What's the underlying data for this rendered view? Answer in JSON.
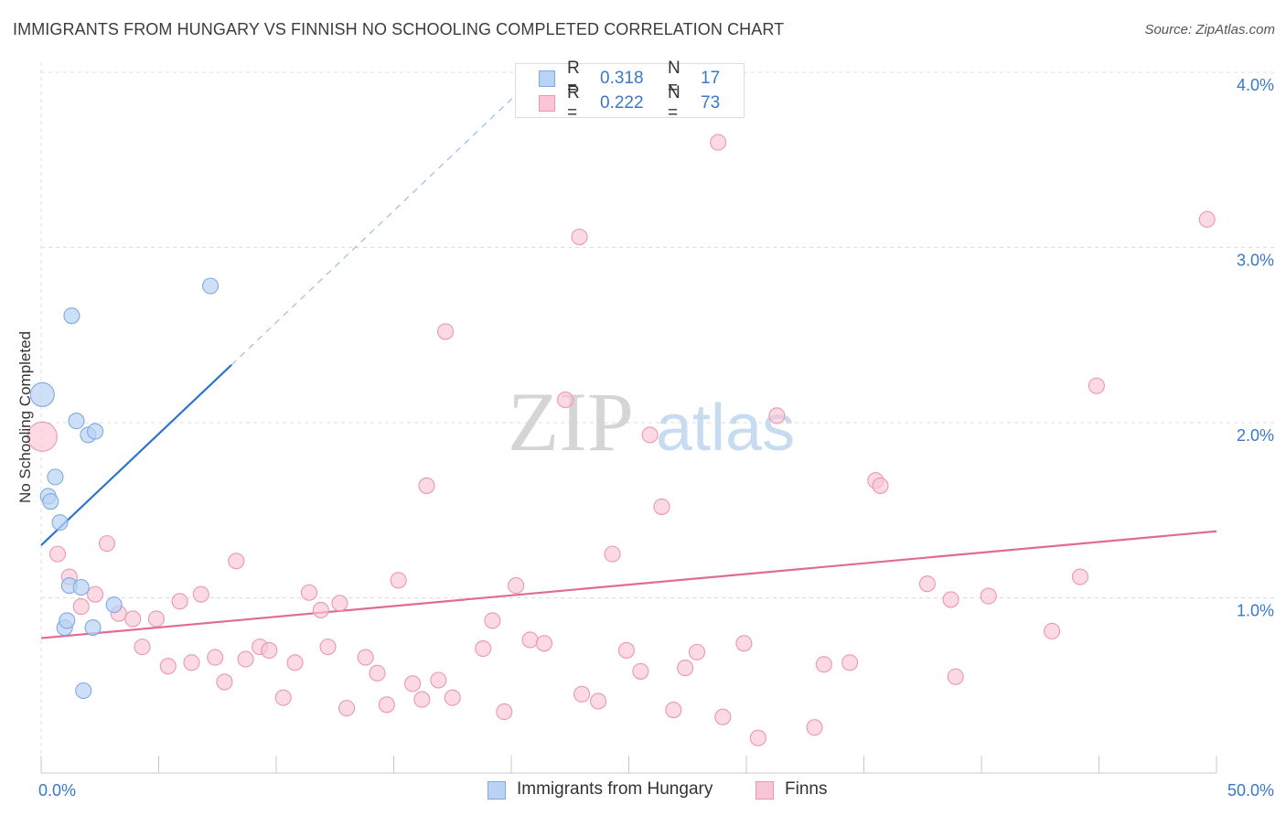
{
  "header": {
    "title": "IMMIGRANTS FROM HUNGARY VS FINNISH NO SCHOOLING COMPLETED CORRELATION CHART",
    "source": "Source: ZipAtlas.com"
  },
  "watermark": {
    "zip": "ZIP",
    "atlas": "atlas"
  },
  "legend_top": [
    {
      "r_label": "R =",
      "r_value": "0.318",
      "n_label": "N =",
      "n_value": "17"
    },
    {
      "r_label": "R =",
      "r_value": "0.222",
      "n_label": "N =",
      "n_value": "73"
    }
  ],
  "legend_bottom": [
    {
      "label": "Immigrants from Hungary"
    },
    {
      "label": "Finns"
    }
  ],
  "colors": {
    "hungary_fill": "#b9d3f5",
    "hungary_stroke": "#7ea9e1",
    "hungary_line": "#2e74cc",
    "finns_fill": "#f9c6d5",
    "finns_stroke": "#eb97b1",
    "finns_line": "#e06b93",
    "tick_text": "#3a78c9",
    "grid": "#dcdcdc"
  },
  "chart_data": {
    "type": "scatter",
    "title": "IMMIGRANTS FROM HUNGARY VS FINNISH NO SCHOOLING COMPLETED CORRELATION CHART",
    "xlabel": "",
    "ylabel": "No Schooling Completed",
    "xlim": [
      0,
      50
    ],
    "ylim": [
      0,
      4.0
    ],
    "x_tick_labels": [
      "0.0%",
      "50.0%"
    ],
    "y_ticks": [
      1.0,
      2.0,
      3.0,
      4.0
    ],
    "y_tick_labels": [
      "1.0%",
      "2.0%",
      "3.0%",
      "4.0%"
    ],
    "grid": true,
    "series": [
      {
        "name": "Immigrants from Hungary",
        "r": 0.318,
        "n": 17,
        "points": [
          {
            "x": 0.05,
            "y": 2.16,
            "size": "large"
          },
          {
            "x": 0.3,
            "y": 1.58
          },
          {
            "x": 0.4,
            "y": 1.55
          },
          {
            "x": 0.6,
            "y": 1.69
          },
          {
            "x": 0.8,
            "y": 1.43
          },
          {
            "x": 1.0,
            "y": 0.83
          },
          {
            "x": 1.1,
            "y": 0.87
          },
          {
            "x": 1.2,
            "y": 1.07
          },
          {
            "x": 1.3,
            "y": 2.61
          },
          {
            "x": 1.5,
            "y": 2.01
          },
          {
            "x": 1.7,
            "y": 1.06
          },
          {
            "x": 1.8,
            "y": 0.47
          },
          {
            "x": 2.0,
            "y": 1.93
          },
          {
            "x": 2.2,
            "y": 0.83
          },
          {
            "x": 2.3,
            "y": 1.95
          },
          {
            "x": 3.1,
            "y": 0.96
          },
          {
            "x": 7.2,
            "y": 2.78
          }
        ],
        "trend_solid": {
          "x0": 0,
          "y0": 1.3,
          "x1": 8.1,
          "y1": 2.33
        },
        "trend_dashed": {
          "x0": 8.1,
          "y0": 2.33,
          "x1": 21.6,
          "y1": 4.05
        }
      },
      {
        "name": "Finns",
        "r": 0.222,
        "n": 73,
        "points": [
          {
            "x": 0.05,
            "y": 1.92,
            "size": "large"
          },
          {
            "x": 0.7,
            "y": 1.25
          },
          {
            "x": 1.2,
            "y": 1.12
          },
          {
            "x": 1.7,
            "y": 0.95
          },
          {
            "x": 2.3,
            "y": 1.02
          },
          {
            "x": 2.8,
            "y": 1.31
          },
          {
            "x": 3.3,
            "y": 0.91
          },
          {
            "x": 3.9,
            "y": 0.88
          },
          {
            "x": 4.3,
            "y": 0.72
          },
          {
            "x": 4.9,
            "y": 0.88
          },
          {
            "x": 5.4,
            "y": 0.61
          },
          {
            "x": 5.9,
            "y": 0.98
          },
          {
            "x": 6.4,
            "y": 0.63
          },
          {
            "x": 6.8,
            "y": 1.02
          },
          {
            "x": 7.4,
            "y": 0.66
          },
          {
            "x": 7.8,
            "y": 0.52
          },
          {
            "x": 8.3,
            "y": 1.21
          },
          {
            "x": 8.7,
            "y": 0.65
          },
          {
            "x": 9.3,
            "y": 0.72
          },
          {
            "x": 9.7,
            "y": 0.7
          },
          {
            "x": 10.3,
            "y": 0.43
          },
          {
            "x": 10.8,
            "y": 0.63
          },
          {
            "x": 11.4,
            "y": 1.03
          },
          {
            "x": 11.9,
            "y": 0.93
          },
          {
            "x": 12.2,
            "y": 0.72
          },
          {
            "x": 12.7,
            "y": 0.97
          },
          {
            "x": 13.0,
            "y": 0.37
          },
          {
            "x": 13.8,
            "y": 0.66
          },
          {
            "x": 14.3,
            "y": 0.57
          },
          {
            "x": 14.7,
            "y": 0.39
          },
          {
            "x": 15.2,
            "y": 1.1
          },
          {
            "x": 15.8,
            "y": 0.51
          },
          {
            "x": 16.2,
            "y": 0.42
          },
          {
            "x": 16.4,
            "y": 1.64
          },
          {
            "x": 16.9,
            "y": 0.53
          },
          {
            "x": 17.2,
            "y": 2.52
          },
          {
            "x": 17.5,
            "y": 0.43
          },
          {
            "x": 18.8,
            "y": 0.71
          },
          {
            "x": 19.2,
            "y": 0.87
          },
          {
            "x": 19.7,
            "y": 0.35
          },
          {
            "x": 20.2,
            "y": 1.07
          },
          {
            "x": 20.8,
            "y": 0.76
          },
          {
            "x": 21.4,
            "y": 0.74
          },
          {
            "x": 22.3,
            "y": 2.13
          },
          {
            "x": 22.9,
            "y": 3.06
          },
          {
            "x": 23.0,
            "y": 0.45
          },
          {
            "x": 23.7,
            "y": 0.41
          },
          {
            "x": 24.3,
            "y": 1.25
          },
          {
            "x": 24.9,
            "y": 0.7
          },
          {
            "x": 25.5,
            "y": 0.58
          },
          {
            "x": 25.9,
            "y": 1.93
          },
          {
            "x": 26.4,
            "y": 1.52
          },
          {
            "x": 26.9,
            "y": 0.36
          },
          {
            "x": 27.4,
            "y": 0.6
          },
          {
            "x": 27.9,
            "y": 0.69
          },
          {
            "x": 28.8,
            "y": 3.6
          },
          {
            "x": 29.0,
            "y": 0.32
          },
          {
            "x": 29.9,
            "y": 0.74
          },
          {
            "x": 30.5,
            "y": 0.2
          },
          {
            "x": 31.3,
            "y": 2.04
          },
          {
            "x": 32.9,
            "y": 0.26
          },
          {
            "x": 33.3,
            "y": 0.62
          },
          {
            "x": 34.4,
            "y": 0.63
          },
          {
            "x": 35.5,
            "y": 1.67
          },
          {
            "x": 35.7,
            "y": 1.64
          },
          {
            "x": 37.7,
            "y": 1.08
          },
          {
            "x": 38.7,
            "y": 0.99
          },
          {
            "x": 38.9,
            "y": 0.55
          },
          {
            "x": 40.3,
            "y": 1.01
          },
          {
            "x": 43.0,
            "y": 0.81
          },
          {
            "x": 44.2,
            "y": 1.12
          },
          {
            "x": 44.9,
            "y": 2.21
          },
          {
            "x": 49.6,
            "y": 3.16
          }
        ],
        "trend_solid": {
          "x0": 0,
          "y0": 0.77,
          "x1": 50,
          "y1": 1.38
        }
      }
    ]
  }
}
